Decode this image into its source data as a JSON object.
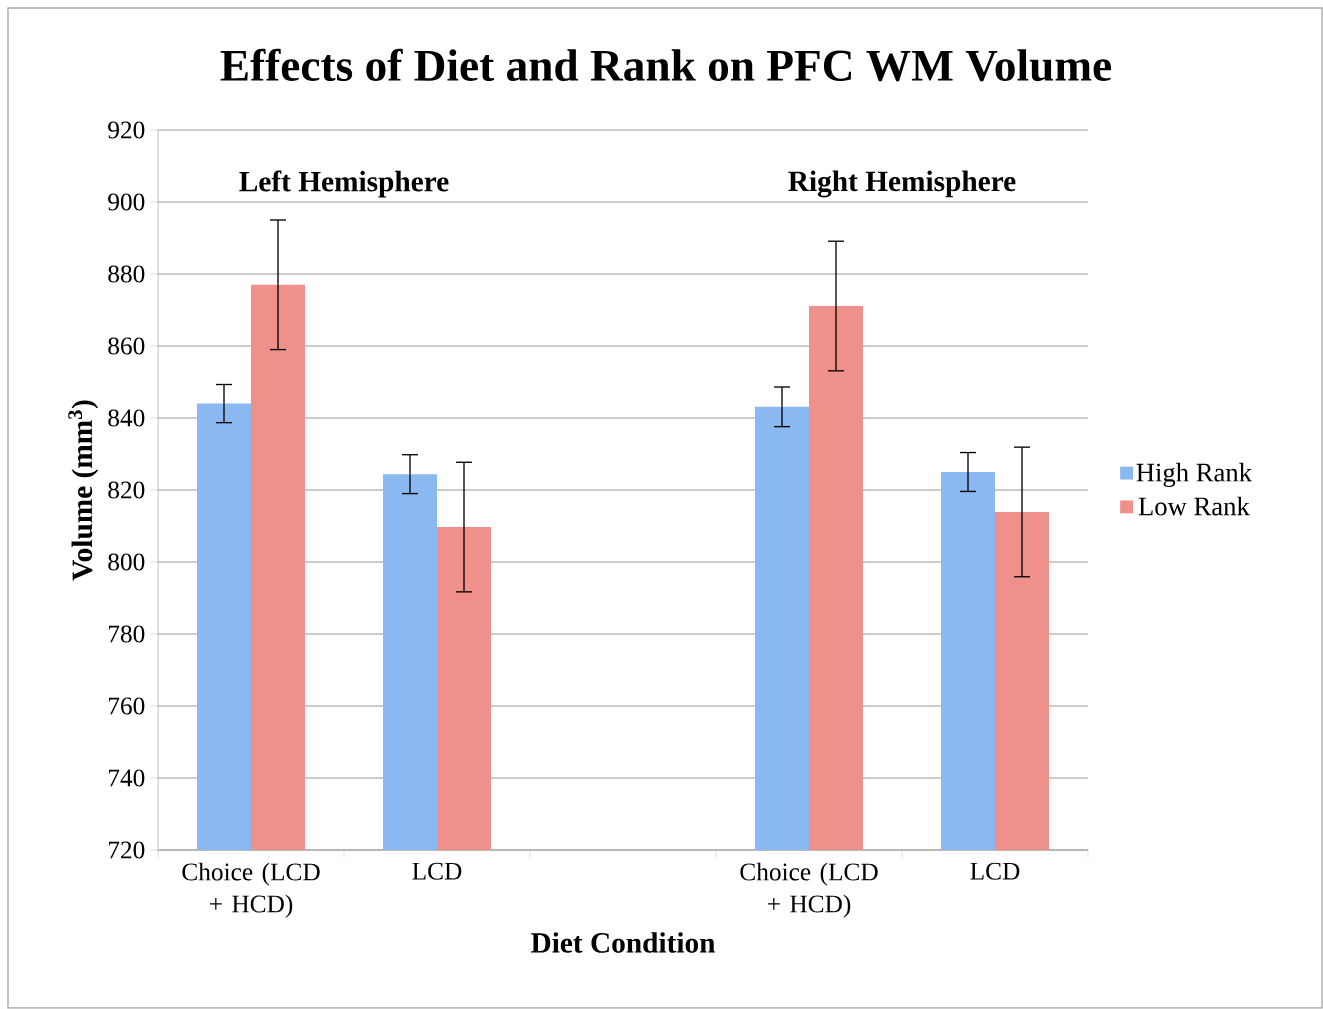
{
  "chart_data": {
    "type": "bar",
    "title": "Effects of Diet and Rank on PFC WM Volume",
    "xlabel": "Diet Condition",
    "ylabel": "Volume (mm$^{3}$)",
    "categories": [
      "Choice (LCD + HCD)",
      "LCD",
      null,
      "Choice (LCD + HCD)",
      "LCD"
    ],
    "series": [
      {
        "name": "High Rank",
        "color": "#8ab8f0",
        "values": [
          844,
          824.4,
          null,
          843.1,
          825
        ],
        "errors": [
          5.3,
          5.4,
          null,
          5.5,
          5.4
        ]
      },
      {
        "name": "Low Rank",
        "color": "#f0908a",
        "values": [
          877,
          809.7,
          null,
          871.1,
          813.9
        ],
        "errors": [
          18,
          18,
          null,
          18,
          18
        ]
      }
    ],
    "annotations": [
      "Left Hemisphere",
      "Right Hemisphere"
    ],
    "ylim": [
      720,
      920
    ],
    "yticks": [
      720,
      740,
      760,
      780,
      800,
      820,
      840,
      860,
      880,
      900,
      920
    ],
    "grid": "y",
    "legend": "right"
  }
}
